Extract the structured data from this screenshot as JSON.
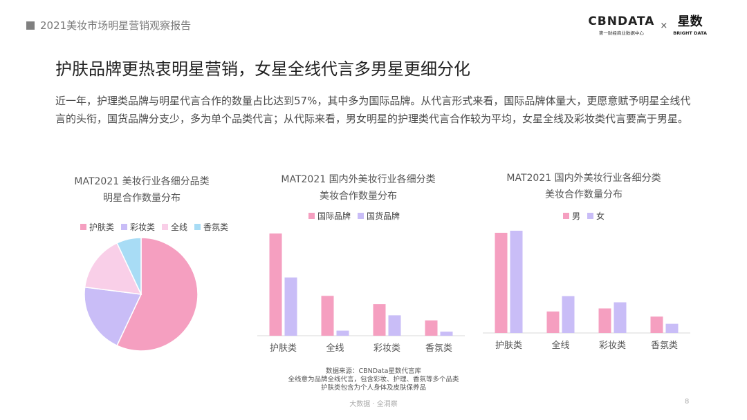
{
  "header": {
    "report_label": "2021美妆市场明星营销观察报告",
    "logo_main": "CBNDATA",
    "logo_sub": "第一财经商业数据中心",
    "logo_separator": "×",
    "logo2_main": "星数",
    "logo2_sub": "BRIGHT DATA"
  },
  "title": "护肤品牌更热衷明星营销，女星全线代言多男星更细分化",
  "description": "近一年，护理类品牌与明星代言合作的数量占比达到57%，其中多为国际品牌。从代言形式来看，国际品牌体量大，更愿意赋予明星全线代言的头衔，国货品牌分支少，多为单个品类代言；从代际来看，男女明星的护理类代言合作较为平均，女星全线及彩妆类代言要高于男星。",
  "footer": {
    "source": "数据来源：CBNData星数代言库",
    "note1": "全线意为品牌全线代言，包含彩妆、护理、香氛等多个品类",
    "note2": "护肤类包含为个人身体及皮肤保养品",
    "tagline": "大数据 · 全洞察",
    "page": "8"
  },
  "chart_data": [
    {
      "type": "pie",
      "title_line1": "MAT2021 美妆行业各细分品类",
      "title_line2": "明星合作数量分布",
      "categories": [
        "护肤类",
        "彩妆类",
        "全线",
        "香氛类"
      ],
      "values": [
        57,
        20,
        16,
        7
      ],
      "colors": [
        "#f59fc0",
        "#c9bdf7",
        "#f9cfe8",
        "#a8dcf5"
      ],
      "legend_position": "top"
    },
    {
      "type": "bar",
      "title_line1": "MAT2021 国内外美妆行业各细分类",
      "title_line2": "美妆合作数量分布",
      "categories": [
        "护肤类",
        "全线",
        "彩妆类",
        "香氛类"
      ],
      "series": [
        {
          "name": "国际品牌",
          "values": [
            100,
            39,
            31,
            15
          ],
          "color": "#f59fc0"
        },
        {
          "name": "国货品牌",
          "values": [
            57,
            5,
            20,
            4
          ],
          "color": "#c9bdf7"
        }
      ],
      "ylim": [
        0,
        100
      ],
      "legend_position": "top"
    },
    {
      "type": "bar",
      "title_line1": "MAT2021 国内外美妆行业各细分类",
      "title_line2": "美妆合作数量分布",
      "categories": [
        "护肤类",
        "全线",
        "彩妆类",
        "香氛类"
      ],
      "series": [
        {
          "name": "男",
          "values": [
            98,
            21,
            24,
            16
          ],
          "color": "#f59fc0"
        },
        {
          "name": "女",
          "values": [
            100,
            36,
            30,
            9
          ],
          "color": "#c9bdf7"
        }
      ],
      "ylim": [
        0,
        100
      ],
      "legend_position": "top"
    }
  ]
}
